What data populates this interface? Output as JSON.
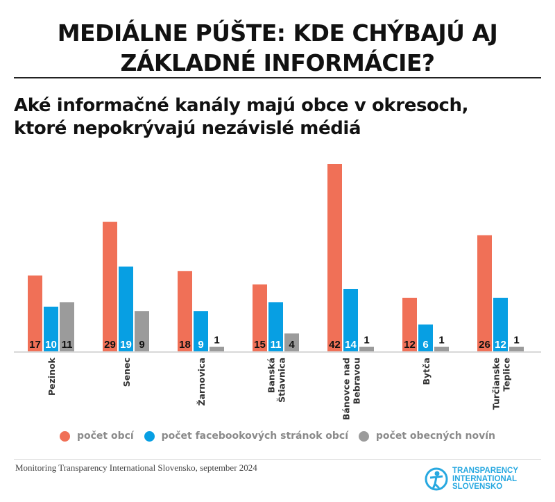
{
  "title_lines": [
    "MEDIÁLNE PÚŠTE: KDE CHÝBAJÚ AJ",
    "ZÁKLADNÉ INFORMÁCIE?"
  ],
  "subtitle_lines": [
    "Aké informačné kanály majú obce v okresoch,",
    "ktoré nepokrývajú nezávislé médiá"
  ],
  "chart_data": {
    "type": "bar",
    "categories": [
      [
        "Pezinok"
      ],
      [
        "Senec"
      ],
      [
        "Žarnovica"
      ],
      [
        "Banská",
        "Štiavnica"
      ],
      [
        "Bánovce nad",
        "Bebravou"
      ],
      [
        "Bytča"
      ],
      [
        "Turčianske",
        "Teplice"
      ]
    ],
    "series": [
      {
        "name": "počet obcí",
        "color": "#f07057",
        "values": [
          17,
          29,
          18,
          15,
          42,
          12,
          26
        ]
      },
      {
        "name": "počet facebookových stránok obcí",
        "color": "#079fe3",
        "values": [
          10,
          19,
          9,
          11,
          14,
          6,
          12
        ]
      },
      {
        "name": "počet obecných novín",
        "color": "#9b9b9b",
        "values": [
          11,
          9,
          1,
          4,
          1,
          1,
          1
        ]
      }
    ],
    "ylim": [
      0,
      42
    ],
    "grid": false,
    "legend": "bottom"
  },
  "source": "Monitoring Transparency International Slovensko, september 2024",
  "logo": [
    "TRANSPARENCY",
    "INTERNATIONAL",
    "SLOVENSKO"
  ]
}
